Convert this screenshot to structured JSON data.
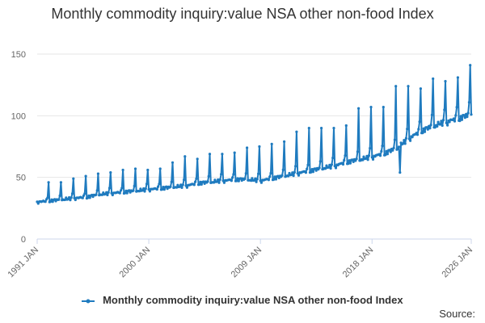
{
  "chart_data": {
    "type": "line",
    "title": "Monthly commodity inquiry:value NSA other non-food Index",
    "xlabel": "",
    "ylabel": "",
    "x_range": [
      "1991 JAN",
      "2026 JAN"
    ],
    "ylim": [
      0,
      150
    ],
    "y_ticks": [
      0,
      50,
      100,
      150
    ],
    "x_tick_labels": [
      "1991 JAN",
      "2000 JAN",
      "2009 JAN",
      "2018 JAN",
      "2026 JAN"
    ],
    "grid": "horizontal",
    "legend_position": "bottom",
    "color": "#1f7bbf",
    "annual_summary": [
      {
        "year": 1991,
        "base": 29,
        "dec_peak": 46
      },
      {
        "year": 1992,
        "base": 30,
        "dec_peak": 46
      },
      {
        "year": 1993,
        "base": 31,
        "dec_peak": 49
      },
      {
        "year": 1994,
        "base": 32,
        "dec_peak": 51
      },
      {
        "year": 1995,
        "base": 33,
        "dec_peak": 53
      },
      {
        "year": 1996,
        "base": 35,
        "dec_peak": 54
      },
      {
        "year": 1997,
        "base": 36,
        "dec_peak": 56
      },
      {
        "year": 1998,
        "base": 37,
        "dec_peak": 57
      },
      {
        "year": 1999,
        "base": 38,
        "dec_peak": 56
      },
      {
        "year": 2000,
        "base": 39,
        "dec_peak": 57
      },
      {
        "year": 2001,
        "base": 40,
        "dec_peak": 62
      },
      {
        "year": 2002,
        "base": 41,
        "dec_peak": 67
      },
      {
        "year": 2003,
        "base": 42,
        "dec_peak": 65
      },
      {
        "year": 2004,
        "base": 44,
        "dec_peak": 69
      },
      {
        "year": 2005,
        "base": 45,
        "dec_peak": 69
      },
      {
        "year": 2006,
        "base": 46,
        "dec_peak": 70
      },
      {
        "year": 2007,
        "base": 47,
        "dec_peak": 74
      },
      {
        "year": 2008,
        "base": 47,
        "dec_peak": 75
      },
      {
        "year": 2009,
        "base": 46,
        "dec_peak": 77
      },
      {
        "year": 2010,
        "base": 48,
        "dec_peak": 79
      },
      {
        "year": 2011,
        "base": 50,
        "dec_peak": 87
      },
      {
        "year": 2012,
        "base": 52,
        "dec_peak": 90
      },
      {
        "year": 2013,
        "base": 54,
        "dec_peak": 90
      },
      {
        "year": 2014,
        "base": 56,
        "dec_peak": 90
      },
      {
        "year": 2015,
        "base": 58,
        "dec_peak": 92
      },
      {
        "year": 2016,
        "base": 61,
        "dec_peak": 106
      },
      {
        "year": 2017,
        "base": 63,
        "dec_peak": 107
      },
      {
        "year": 2018,
        "base": 65,
        "dec_peak": 107
      },
      {
        "year": 2019,
        "base": 68,
        "dec_peak": 124
      },
      {
        "year": 2020,
        "base": 72,
        "dec_peak": 124
      },
      {
        "year": 2021,
        "base": 80,
        "dec_peak": 122
      },
      {
        "year": 2022,
        "base": 86,
        "dec_peak": 130
      },
      {
        "year": 2023,
        "base": 90,
        "dec_peak": 128
      },
      {
        "year": 2024,
        "base": 93,
        "dec_peak": 131
      },
      {
        "year": 2025,
        "base": 96,
        "dec_peak": 141
      }
    ],
    "notable_points": [
      {
        "x": "2020 APR",
        "y": 54
      },
      {
        "x": "2025 DEC",
        "y": 141
      },
      {
        "x": "2026 JAN",
        "y": 101
      }
    ],
    "series": [
      {
        "name": "Monthly commodity inquiry:value NSA other non-food Index"
      }
    ]
  },
  "legend": {
    "label": "Monthly commodity inquiry:value NSA other non-food Index"
  },
  "source_label": "Source:"
}
